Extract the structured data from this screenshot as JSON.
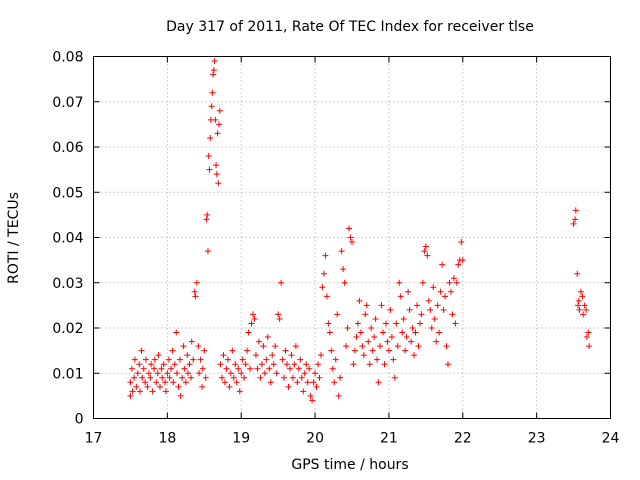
{
  "chart_data": {
    "type": "scatter",
    "title": "Day 317 of 2011, Rate Of TEC Index for receiver tlse",
    "xlabel": "GPS time / hours",
    "ylabel": "ROTI / TECUs",
    "xlim": [
      17,
      24
    ],
    "ylim": [
      0,
      0.08
    ],
    "grid": true,
    "marker": "+",
    "color": "#ff0000",
    "xticks": [
      "17",
      "18",
      "19",
      "20",
      "21",
      "22",
      "23",
      "24"
    ],
    "yticks": [
      "0",
      "0.01",
      "0.02",
      "0.03",
      "0.04",
      "0.05",
      "0.06",
      "0.07",
      "0.08"
    ],
    "series": [
      {
        "name": "ROTI",
        "points": [
          [
            17.5,
            0.005
          ],
          [
            17.5,
            0.008
          ],
          [
            17.52,
            0.011
          ],
          [
            17.53,
            0.006
          ],
          [
            17.55,
            0.009
          ],
          [
            17.56,
            0.013
          ],
          [
            17.58,
            0.007
          ],
          [
            17.6,
            0.01
          ],
          [
            17.62,
            0.012
          ],
          [
            17.63,
            0.006
          ],
          [
            17.65,
            0.015
          ],
          [
            17.66,
            0.009
          ],
          [
            17.68,
            0.011
          ],
          [
            17.7,
            0.008
          ],
          [
            17.71,
            0.013
          ],
          [
            17.73,
            0.007
          ],
          [
            17.75,
            0.01
          ],
          [
            17.77,
            0.009
          ],
          [
            17.78,
            0.012
          ],
          [
            17.8,
            0.006
          ],
          [
            17.82,
            0.011
          ],
          [
            17.83,
            0.013
          ],
          [
            17.85,
            0.008
          ],
          [
            17.87,
            0.01
          ],
          [
            17.88,
            0.014
          ],
          [
            17.9,
            0.007
          ],
          [
            17.92,
            0.011
          ],
          [
            17.93,
            0.009
          ],
          [
            17.95,
            0.012
          ],
          [
            17.97,
            0.008
          ],
          [
            17.98,
            0.006
          ],
          [
            18.0,
            0.01
          ],
          [
            18.02,
            0.013
          ],
          [
            18.03,
            0.009
          ],
          [
            18.05,
            0.011
          ],
          [
            18.07,
            0.015
          ],
          [
            18.08,
            0.008
          ],
          [
            18.1,
            0.012
          ],
          [
            18.12,
            0.019
          ],
          [
            18.13,
            0.01
          ],
          [
            18.15,
            0.007
          ],
          [
            18.17,
            0.013
          ],
          [
            18.18,
            0.005
          ],
          [
            18.2,
            0.009
          ],
          [
            18.22,
            0.016
          ],
          [
            18.23,
            0.011
          ],
          [
            18.25,
            0.008
          ],
          [
            18.27,
            0.014
          ],
          [
            18.28,
            0.01
          ],
          [
            18.3,
            0.012
          ],
          [
            18.32,
            0.009
          ],
          [
            18.33,
            0.017
          ],
          [
            18.35,
            0.013
          ],
          [
            18.37,
            0.028
          ],
          [
            18.38,
            0.027
          ],
          [
            18.4,
            0.03
          ],
          [
            18.42,
            0.016
          ],
          [
            18.43,
            0.01
          ],
          [
            18.45,
            0.013
          ],
          [
            18.47,
            0.007
          ],
          [
            18.48,
            0.011
          ],
          [
            18.5,
            0.015
          ],
          [
            18.52,
            0.009
          ],
          [
            18.53,
            0.044
          ],
          [
            18.54,
            0.045
          ],
          [
            18.55,
            0.037
          ],
          [
            18.56,
            0.058
          ],
          [
            18.57,
            0.055
          ],
          [
            18.58,
            0.062
          ],
          [
            18.59,
            0.066
          ],
          [
            18.6,
            0.069
          ],
          [
            18.61,
            0.072
          ],
          [
            18.62,
            0.076
          ],
          [
            18.63,
            0.077
          ],
          [
            18.64,
            0.079
          ],
          [
            18.65,
            0.066
          ],
          [
            18.66,
            0.056
          ],
          [
            18.67,
            0.054
          ],
          [
            18.68,
            0.063
          ],
          [
            18.69,
            0.052
          ],
          [
            18.7,
            0.065
          ],
          [
            18.71,
            0.068
          ],
          [
            18.72,
            0.012
          ],
          [
            18.74,
            0.009
          ],
          [
            18.76,
            0.014
          ],
          [
            18.78,
            0.008
          ],
          [
            18.8,
            0.011
          ],
          [
            18.82,
            0.013
          ],
          [
            18.84,
            0.007
          ],
          [
            18.86,
            0.01
          ],
          [
            18.88,
            0.015
          ],
          [
            18.9,
            0.009
          ],
          [
            18.92,
            0.012
          ],
          [
            18.94,
            0.008
          ],
          [
            18.96,
            0.011
          ],
          [
            18.98,
            0.006
          ],
          [
            19.0,
            0.01
          ],
          [
            19.02,
            0.013
          ],
          [
            19.04,
            0.009
          ],
          [
            19.06,
            0.012
          ],
          [
            19.08,
            0.015
          ],
          [
            19.1,
            0.019
          ],
          [
            19.12,
            0.011
          ],
          [
            19.14,
            0.021
          ],
          [
            19.16,
            0.023
          ],
          [
            19.18,
            0.022
          ],
          [
            19.2,
            0.014
          ],
          [
            19.22,
            0.011
          ],
          [
            19.24,
            0.017
          ],
          [
            19.26,
            0.009
          ],
          [
            19.28,
            0.012
          ],
          [
            19.3,
            0.016
          ],
          [
            19.32,
            0.01
          ],
          [
            19.34,
            0.013
          ],
          [
            19.36,
            0.018
          ],
          [
            19.38,
            0.011
          ],
          [
            19.4,
            0.008
          ],
          [
            19.42,
            0.014
          ],
          [
            19.44,
            0.012
          ],
          [
            19.46,
            0.016
          ],
          [
            19.48,
            0.01
          ],
          [
            19.5,
            0.023
          ],
          [
            19.52,
            0.022
          ],
          [
            19.54,
            0.03
          ],
          [
            19.56,
            0.013
          ],
          [
            19.58,
            0.009
          ],
          [
            19.6,
            0.015
          ],
          [
            19.62,
            0.012
          ],
          [
            19.64,
            0.007
          ],
          [
            19.66,
            0.011
          ],
          [
            19.68,
            0.014
          ],
          [
            19.7,
            0.009
          ],
          [
            19.72,
            0.012
          ],
          [
            19.74,
            0.016
          ],
          [
            19.76,
            0.008
          ],
          [
            19.78,
            0.011
          ],
          [
            19.8,
            0.013
          ],
          [
            19.82,
            0.009
          ],
          [
            19.84,
            0.006
          ],
          [
            19.86,
            0.01
          ],
          [
            19.88,
            0.012
          ],
          [
            19.9,
            0.008
          ],
          [
            19.92,
            0.011
          ],
          [
            19.94,
            0.005
          ],
          [
            19.96,
            0.004
          ],
          [
            19.98,
            0.008
          ],
          [
            20.0,
            0.01
          ],
          [
            20.02,
            0.007
          ],
          [
            20.04,
            0.012
          ],
          [
            20.06,
            0.009
          ],
          [
            20.08,
            0.014
          ],
          [
            20.1,
            0.029
          ],
          [
            20.12,
            0.032
          ],
          [
            20.14,
            0.036
          ],
          [
            20.16,
            0.027
          ],
          [
            20.18,
            0.021
          ],
          [
            20.2,
            0.019
          ],
          [
            20.22,
            0.015
          ],
          [
            20.24,
            0.011
          ],
          [
            20.26,
            0.008
          ],
          [
            20.28,
            0.013
          ],
          [
            20.3,
            0.023
          ],
          [
            20.32,
            0.005
          ],
          [
            20.34,
            0.009
          ],
          [
            20.36,
            0.037
          ],
          [
            20.38,
            0.033
          ],
          [
            20.4,
            0.03
          ],
          [
            20.42,
            0.016
          ],
          [
            20.44,
            0.02
          ],
          [
            20.46,
            0.042
          ],
          [
            20.48,
            0.04
          ],
          [
            20.5,
            0.039
          ],
          [
            20.52,
            0.012
          ],
          [
            20.54,
            0.015
          ],
          [
            20.56,
            0.018
          ],
          [
            20.58,
            0.021
          ],
          [
            20.6,
            0.026
          ],
          [
            20.62,
            0.019
          ],
          [
            20.64,
            0.016
          ],
          [
            20.66,
            0.014
          ],
          [
            20.68,
            0.023
          ],
          [
            20.7,
            0.025
          ],
          [
            20.72,
            0.017
          ],
          [
            20.74,
            0.012
          ],
          [
            20.76,
            0.02
          ],
          [
            20.78,
            0.015
          ],
          [
            20.8,
            0.018
          ],
          [
            20.82,
            0.022
          ],
          [
            20.84,
            0.013
          ],
          [
            20.86,
            0.008
          ],
          [
            20.88,
            0.016
          ],
          [
            20.9,
            0.025
          ],
          [
            20.92,
            0.019
          ],
          [
            20.94,
            0.012
          ],
          [
            20.96,
            0.021
          ],
          [
            20.98,
            0.017
          ],
          [
            21.0,
            0.015
          ],
          [
            21.02,
            0.024
          ],
          [
            21.04,
            0.018
          ],
          [
            21.06,
            0.013
          ],
          [
            21.08,
            0.009
          ],
          [
            21.1,
            0.021
          ],
          [
            21.12,
            0.016
          ],
          [
            21.14,
            0.03
          ],
          [
            21.16,
            0.027
          ],
          [
            21.18,
            0.019
          ],
          [
            21.2,
            0.022
          ],
          [
            21.22,
            0.015
          ],
          [
            21.24,
            0.018
          ],
          [
            21.26,
            0.028
          ],
          [
            21.28,
            0.024
          ],
          [
            21.3,
            0.017
          ],
          [
            21.32,
            0.02
          ],
          [
            21.34,
            0.014
          ],
          [
            21.36,
            0.019
          ],
          [
            21.38,
            0.025
          ],
          [
            21.4,
            0.016
          ],
          [
            21.42,
            0.021
          ],
          [
            21.44,
            0.023
          ],
          [
            21.46,
            0.03
          ],
          [
            21.48,
            0.037
          ],
          [
            21.5,
            0.038
          ],
          [
            21.52,
            0.036
          ],
          [
            21.54,
            0.026
          ],
          [
            21.56,
            0.024
          ],
          [
            21.58,
            0.02
          ],
          [
            21.6,
            0.029
          ],
          [
            21.62,
            0.022
          ],
          [
            21.64,
            0.017
          ],
          [
            21.66,
            0.025
          ],
          [
            21.68,
            0.019
          ],
          [
            21.7,
            0.028
          ],
          [
            21.72,
            0.034
          ],
          [
            21.74,
            0.024
          ],
          [
            21.76,
            0.027
          ],
          [
            21.78,
            0.016
          ],
          [
            21.8,
            0.012
          ],
          [
            21.82,
            0.03
          ],
          [
            21.84,
            0.028
          ],
          [
            21.86,
            0.023
          ],
          [
            21.88,
            0.031
          ],
          [
            21.9,
            0.021
          ],
          [
            21.92,
            0.03
          ],
          [
            21.94,
            0.034
          ],
          [
            21.96,
            0.035
          ],
          [
            21.98,
            0.039
          ],
          [
            22.0,
            0.035
          ],
          [
            23.5,
            0.043
          ],
          [
            23.52,
            0.044
          ],
          [
            23.53,
            0.046
          ],
          [
            23.55,
            0.032
          ],
          [
            23.56,
            0.025
          ],
          [
            23.57,
            0.026
          ],
          [
            23.58,
            0.024
          ],
          [
            23.6,
            0.028
          ],
          [
            23.62,
            0.027
          ],
          [
            23.63,
            0.023
          ],
          [
            23.65,
            0.025
          ],
          [
            23.67,
            0.024
          ],
          [
            23.68,
            0.018
          ],
          [
            23.7,
            0.019
          ],
          [
            23.71,
            0.016
          ]
        ]
      }
    ]
  }
}
